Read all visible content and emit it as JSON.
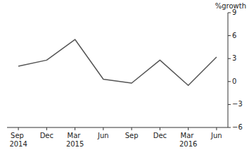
{
  "chart_data": {
    "type": "line",
    "y_label": "%growth",
    "categories": [
      "Sep 2014",
      "Dec",
      "Mar 2015",
      "Jun",
      "Sep",
      "Dec",
      "Mar 2016",
      "Jun"
    ],
    "values": [
      2.0,
      2.8,
      5.5,
      0.3,
      -0.2,
      2.8,
      -0.5,
      3.2
    ],
    "color": "#555555",
    "line_style": "solid",
    "ylim": [
      -6,
      9
    ],
    "yticks": [
      {
        "value": -6,
        "label": "−6"
      },
      {
        "value": -3,
        "label": "−3"
      },
      0,
      3,
      6,
      9
    ],
    "grid": false
  }
}
